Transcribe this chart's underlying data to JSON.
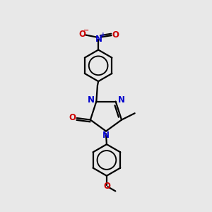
{
  "background_color": "#e8e8e8",
  "bond_color": "#000000",
  "nitrogen_color": "#0000cc",
  "oxygen_color": "#cc0000",
  "line_width": 1.6,
  "figsize": [
    3.0,
    3.0
  ],
  "dpi": 100,
  "xlim": [
    0.15,
    0.85
  ],
  "ylim": [
    0.02,
    0.98
  ]
}
